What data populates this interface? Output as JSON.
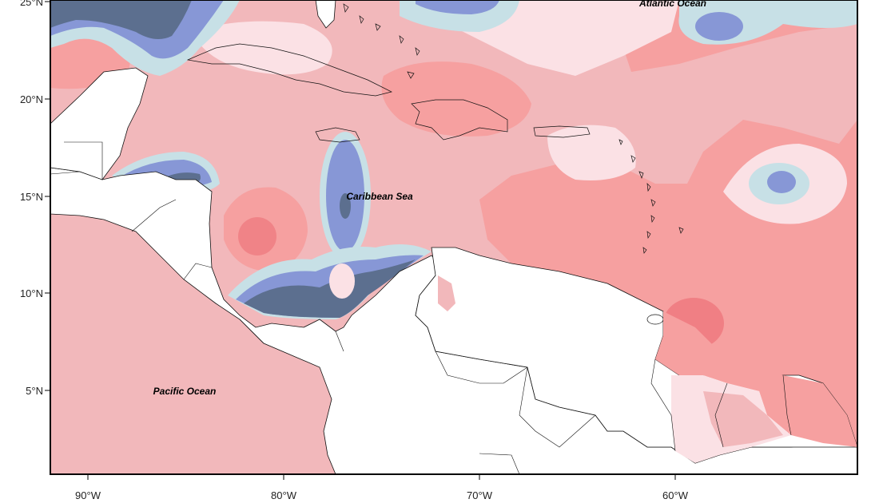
{
  "map": {
    "colors": {
      "deep_blue": "#5c6f8f",
      "blue": "#8797d6",
      "light_blue": "#c7e0e6",
      "pale_pink": "#fbe1e5",
      "light_pink": "#f2b8bb",
      "pink": "#f6a0a0",
      "red": "#f07f84",
      "land": "#ffffff",
      "frame": "#000000"
    },
    "x_axis": {
      "ticks": [
        "90°W",
        "80°W",
        "70°W",
        "60°W"
      ]
    },
    "y_axis": {
      "ticks": [
        "25°N",
        "20°N",
        "15°N",
        "10°N",
        "5°N"
      ]
    },
    "labels": {
      "atlantic": "Atlantic Ocean",
      "caribbean": "Caribbean Sea",
      "pacific": "Pacific Ocean"
    }
  }
}
